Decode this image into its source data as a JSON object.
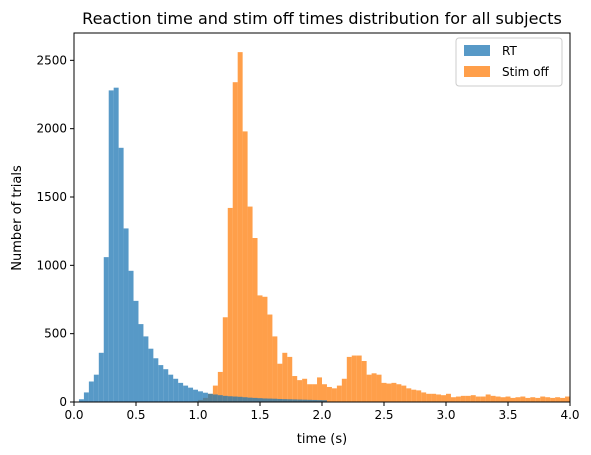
{
  "chart_data": {
    "type": "bar",
    "title": "Reaction time and stim off times  distribution for all subjects",
    "xlabel": "time (s)",
    "ylabel": "Number of trials",
    "xlim": [
      0.0,
      4.0
    ],
    "ylim": [
      0,
      2700
    ],
    "grid": false,
    "legend_position": "upper right",
    "bin_width": 0.04,
    "x_ticks": [
      0.0,
      0.5,
      1.0,
      1.5,
      2.0,
      2.5,
      3.0,
      3.5,
      4.0
    ],
    "x_tick_labels": [
      "0.0",
      "0.5",
      "1.0",
      "1.5",
      "2.0",
      "2.5",
      "3.0",
      "3.5",
      "4.0"
    ],
    "y_ticks": [
      0,
      500,
      1000,
      1500,
      2000,
      2500
    ],
    "y_tick_labels": [
      "0",
      "500",
      "1000",
      "1500",
      "2000",
      "2500"
    ],
    "series": [
      {
        "name": "RT",
        "color": "#1f77b4",
        "alpha": 0.75,
        "bin_starts": [
          0.04,
          0.08,
          0.12,
          0.16,
          0.2,
          0.24,
          0.28,
          0.32,
          0.36,
          0.4,
          0.44,
          0.48,
          0.52,
          0.56,
          0.6,
          0.64,
          0.68,
          0.72,
          0.76,
          0.8,
          0.84,
          0.88,
          0.92,
          0.96,
          1.0,
          1.04,
          1.08,
          1.12,
          1.16,
          1.2,
          1.24,
          1.28,
          1.32,
          1.36,
          1.4,
          1.44,
          1.48,
          1.52,
          1.56,
          1.6,
          1.64,
          1.68,
          1.72,
          1.76,
          1.8,
          1.84,
          1.88,
          1.92,
          1.96,
          2.0
        ],
        "counts": [
          20,
          70,
          150,
          200,
          360,
          1060,
          2280,
          2300,
          1860,
          1270,
          960,
          740,
          570,
          480,
          390,
          320,
          270,
          240,
          200,
          170,
          140,
          120,
          105,
          90,
          78,
          68,
          60,
          55,
          50,
          45,
          42,
          40,
          38,
          35,
          32,
          30,
          28,
          26,
          25,
          24,
          22,
          21,
          20,
          19,
          18,
          17,
          16,
          15,
          14,
          13
        ]
      },
      {
        "name": "Stim off",
        "color": "#ff7f0e",
        "alpha": 0.75,
        "bin_starts": [
          0.96,
          1.0,
          1.04,
          1.08,
          1.12,
          1.16,
          1.2,
          1.24,
          1.28,
          1.32,
          1.36,
          1.4,
          1.44,
          1.48,
          1.52,
          1.56,
          1.6,
          1.64,
          1.68,
          1.72,
          1.76,
          1.8,
          1.84,
          1.88,
          1.92,
          1.96,
          2.0,
          2.04,
          2.08,
          2.12,
          2.16,
          2.2,
          2.24,
          2.28,
          2.32,
          2.36,
          2.4,
          2.44,
          2.48,
          2.52,
          2.56,
          2.6,
          2.64,
          2.68,
          2.72,
          2.76,
          2.8,
          2.84,
          2.88,
          2.92,
          2.96,
          3.0,
          3.04,
          3.08,
          3.12,
          3.16,
          3.2,
          3.24,
          3.28,
          3.32,
          3.36,
          3.4,
          3.44,
          3.48,
          3.52,
          3.56,
          3.6,
          3.64,
          3.68,
          3.72,
          3.76,
          3.8,
          3.84,
          3.88,
          3.92,
          3.96
        ],
        "counts": [
          5,
          15,
          30,
          60,
          120,
          220,
          620,
          1420,
          2340,
          2560,
          1980,
          1430,
          1200,
          780,
          770,
          640,
          480,
          280,
          360,
          330,
          190,
          160,
          170,
          130,
          130,
          180,
          130,
          110,
          100,
          120,
          170,
          330,
          340,
          340,
          300,
          200,
          210,
          200,
          140,
          135,
          140,
          130,
          120,
          100,
          90,
          85,
          70,
          60,
          60,
          55,
          50,
          60,
          35,
          40,
          45,
          45,
          50,
          40,
          40,
          55,
          45,
          40,
          35,
          40,
          30,
          35,
          40,
          30,
          35,
          30,
          40,
          35,
          30,
          35,
          30,
          40
        ]
      }
    ]
  }
}
